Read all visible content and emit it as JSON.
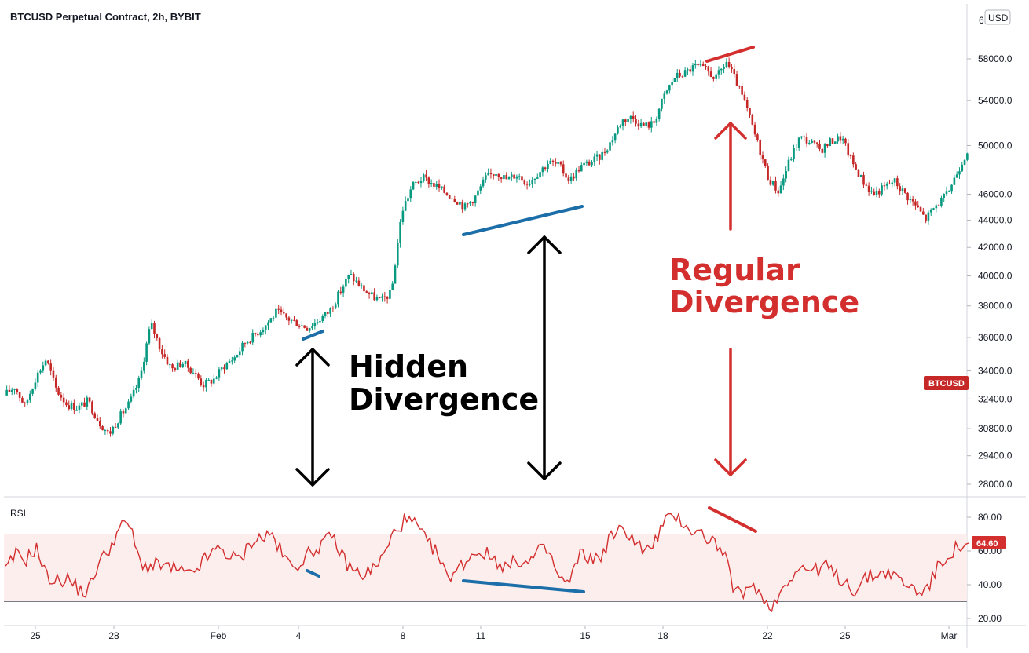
{
  "chart_data": {
    "type": "candlestick",
    "title": "BTCUSD Perpetual Contract, 2h, BYBIT",
    "currency_label": "USD",
    "symbol_badge": "BTCUSD",
    "price_axis": {
      "ticks": [
        "28000.0",
        "29400.0",
        "30800.0",
        "32400.0",
        "34000.0",
        "36000.0",
        "38000.0",
        "40000.0",
        "42000.0",
        "44000.0",
        "46000.0",
        "50000.0",
        "54000.0",
        "58000.0"
      ],
      "partial_top_tick": "6",
      "ylim": [
        27200,
        62000
      ],
      "scale": "log"
    },
    "time_axis": {
      "labels": [
        "25",
        "28",
        "Feb",
        "4",
        "8",
        "11",
        "15",
        "18",
        "22",
        "25",
        "Mar"
      ]
    },
    "price_path": [
      [
        "25",
        32600
      ],
      [
        "25",
        33100
      ],
      [
        "25",
        32000
      ],
      [
        "25",
        33600
      ],
      [
        "25",
        34700
      ],
      [
        "25",
        32900
      ],
      [
        "25",
        32100
      ],
      [
        "25",
        31900
      ],
      [
        "25",
        32300
      ],
      [
        "28",
        31200
      ],
      [
        "28",
        30500
      ],
      [
        "28",
        31400
      ],
      [
        "28",
        32200
      ],
      [
        "28",
        33600
      ],
      [
        "28",
        36900
      ],
      [
        "28",
        35200
      ],
      [
        "28",
        34100
      ],
      [
        "28",
        34500
      ],
      [
        "28",
        34000
      ],
      [
        "Feb",
        33200
      ],
      [
        "Feb",
        33500
      ],
      [
        "Feb",
        34300
      ],
      [
        "Feb",
        34800
      ],
      [
        "Feb",
        35700
      ],
      [
        "Feb",
        36200
      ],
      [
        "Feb",
        36800
      ],
      [
        "Feb",
        37600
      ],
      [
        "Feb",
        37200
      ],
      [
        "4",
        36900
      ],
      [
        "4",
        36600
      ],
      [
        "4",
        37100
      ],
      [
        "4",
        37600
      ],
      [
        "4",
        38800
      ],
      [
        "4",
        40100
      ],
      [
        "4",
        39300
      ],
      [
        "4",
        38700
      ],
      [
        "4",
        38300
      ],
      [
        "8",
        38900
      ],
      [
        "8",
        44700
      ],
      [
        "8",
        46700
      ],
      [
        "8",
        47300
      ],
      [
        "8",
        46800
      ],
      [
        "8",
        46200
      ],
      [
        "8",
        45700
      ],
      [
        "11",
        45000
      ],
      [
        "11",
        45800
      ],
      [
        "11",
        47300
      ],
      [
        "11",
        47800
      ],
      [
        "11",
        47200
      ],
      [
        "11",
        47600
      ],
      [
        "11",
        46900
      ],
      [
        "11",
        47700
      ],
      [
        "11",
        48600
      ],
      [
        "15",
        48300
      ],
      [
        "15",
        47100
      ],
      [
        "15",
        48200
      ],
      [
        "15",
        48600
      ],
      [
        "15",
        49100
      ],
      [
        "15",
        50400
      ],
      [
        "18",
        52200
      ],
      [
        "18",
        52500
      ],
      [
        "18",
        51700
      ],
      [
        "18",
        51900
      ],
      [
        "18",
        54300
      ],
      [
        "18",
        56200
      ],
      [
        "18",
        56600
      ],
      [
        "18",
        57300
      ],
      [
        "18",
        56900
      ],
      [
        "18",
        56100
      ],
      [
        "22",
        57700
      ],
      [
        "22",
        55600
      ],
      [
        "22",
        53100
      ],
      [
        "22",
        50100
      ],
      [
        "22",
        47300
      ],
      [
        "22",
        46200
      ],
      [
        "22",
        48700
      ],
      [
        "22",
        50700
      ],
      [
        "25",
        50300
      ],
      [
        "25",
        49600
      ],
      [
        "25",
        50400
      ],
      [
        "25",
        50700
      ],
      [
        "25",
        48600
      ],
      [
        "25",
        47100
      ],
      [
        "25",
        46000
      ],
      [
        "25",
        46500
      ],
      [
        "25",
        47100
      ],
      [
        "Mar",
        46100
      ],
      [
        "Mar",
        45200
      ],
      [
        "Mar",
        44100
      ],
      [
        "Mar",
        45100
      ],
      [
        "Mar",
        45900
      ],
      [
        "Mar",
        47700
      ],
      [
        "Mar",
        49600
      ]
    ],
    "rsi": {
      "label": "RSI",
      "ticks": [
        "20.00",
        "40.00",
        "60.00",
        "80.00"
      ],
      "upper_band": 70,
      "lower_band": 30,
      "last_value": "64.60",
      "ylim": [
        18,
        86
      ],
      "path": [
        48,
        58,
        55,
        62,
        45,
        42,
        44,
        38,
        35,
        52,
        60,
        72,
        78,
        55,
        50,
        52,
        50,
        48,
        45,
        52,
        58,
        62,
        56,
        55,
        66,
        68,
        70,
        58,
        50,
        55,
        60,
        65,
        68,
        55,
        48,
        46,
        50,
        58,
        72,
        78,
        76,
        66,
        60,
        45,
        48,
        55,
        60,
        58,
        54,
        50,
        55,
        52,
        60,
        60,
        44,
        40,
        58,
        56,
        55,
        68,
        72,
        70,
        62,
        60,
        74,
        82,
        78,
        72,
        70,
        66,
        60,
        40,
        32,
        42,
        30,
        28,
        40,
        48,
        50,
        48,
        52,
        45,
        42,
        36,
        44,
        46,
        48,
        44,
        40,
        36,
        38,
        50,
        58,
        62,
        64.6
      ]
    },
    "annotations": [
      {
        "text_lines": [
          "Hidden",
          "Divergence"
        ],
        "color": "#000000"
      },
      {
        "text_lines": [
          "Regular",
          "Divergence"
        ],
        "color": "#d32f2f"
      }
    ],
    "colors": {
      "up": "#089981",
      "down": "#c62828",
      "rsi_line": "#d32f2f",
      "rsi_band_fill": "#fdeeee",
      "hidden_trendline": "#1b6ea8",
      "regular_trendline": "#d32f2f",
      "badge": "#c62828"
    }
  }
}
